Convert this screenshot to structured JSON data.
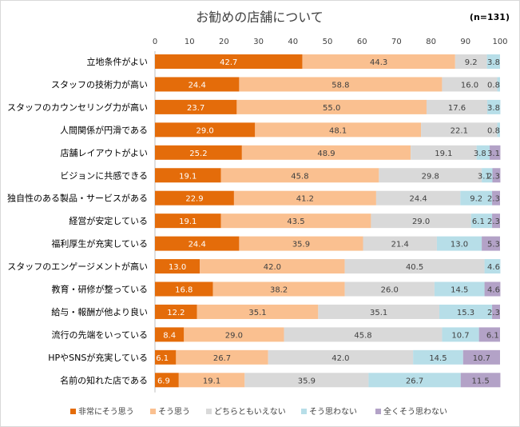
{
  "chart_data": {
    "type": "bar",
    "orientation": "horizontal",
    "stacked": true,
    "title": "お勧めの店舗について",
    "subtitle": "(n=131)",
    "xlim": [
      0,
      100
    ],
    "xticks": [
      0,
      10,
      20,
      30,
      40,
      50,
      60,
      70,
      80,
      90,
      100
    ],
    "grid": false,
    "legend_position": "bottom",
    "categories": [
      "立地条件がよい",
      "スタッフの技術力が高い",
      "スタッフのカウンセリング力が高い",
      "人間関係が円滑である",
      "店舗レイアウトがよい",
      "ビジョンに共感できる",
      "独自性のある製品・サービスがある",
      "経営が安定している",
      "福利厚生が充実している",
      "スタッフのエンゲージメントが高い",
      "教育・研修が整っている",
      "給与・報酬が他より良い",
      "流行の先端をいっている",
      "HPやSNSが充実している",
      "名前の知れた店である"
    ],
    "series": [
      {
        "name": "非常にそう思う",
        "color": "#e46c0a",
        "values": [
          42.7,
          24.4,
          23.7,
          29.0,
          25.2,
          19.1,
          22.9,
          19.1,
          24.4,
          13.0,
          16.8,
          12.2,
          8.4,
          6.1,
          6.9
        ]
      },
      {
        "name": "そう思う",
        "color": "#fac090",
        "values": [
          44.3,
          58.8,
          55.0,
          48.1,
          48.9,
          45.8,
          41.2,
          43.5,
          35.9,
          42.0,
          38.2,
          35.1,
          29.0,
          26.7,
          19.1
        ]
      },
      {
        "name": "どちらともいえない",
        "color": "#d9d9d9",
        "values": [
          9.2,
          16.0,
          17.6,
          22.1,
          19.1,
          29.8,
          24.4,
          29.0,
          21.4,
          40.5,
          26.0,
          35.1,
          45.8,
          42.0,
          35.9
        ]
      },
      {
        "name": "そう思わない",
        "color": "#b7dee8",
        "values": [
          3.8,
          0.8,
          3.8,
          0.8,
          3.8,
          3.1,
          9.2,
          6.1,
          13.0,
          4.6,
          14.5,
          15.3,
          10.7,
          14.5,
          26.7
        ]
      },
      {
        "name": "全くそう思わない",
        "color": "#b3a2c7",
        "values": [
          null,
          null,
          null,
          null,
          3.1,
          2.3,
          2.3,
          2.3,
          5.3,
          null,
          4.6,
          2.3,
          6.1,
          10.7,
          11.5
        ]
      }
    ]
  }
}
